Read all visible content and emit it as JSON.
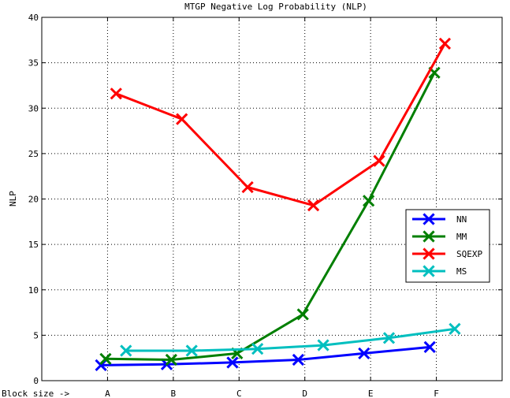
{
  "chart_data": {
    "type": "line",
    "title": "MTGP Negative Log Probability (NLP)",
    "xlabel": "Block size ->",
    "ylabel": "NLP",
    "categories": [
      "A",
      "B",
      "C",
      "D",
      "E",
      "F"
    ],
    "ylim": [
      0,
      40
    ],
    "yticks": [
      0,
      5,
      10,
      15,
      20,
      25,
      30,
      35,
      40
    ],
    "grid": true,
    "legend_position": "right",
    "series": [
      {
        "name": "NN",
        "color": "#0000ff",
        "points": [
          [
            0.9,
            1.7
          ],
          [
            1.9,
            1.8
          ],
          [
            2.9,
            2.0
          ],
          [
            3.9,
            2.3
          ],
          [
            4.9,
            3.0
          ],
          [
            5.9,
            3.7
          ]
        ]
      },
      {
        "name": "MM",
        "color": "#007f00",
        "points": [
          [
            0.97,
            2.4
          ],
          [
            1.97,
            2.3
          ],
          [
            2.97,
            3.0
          ],
          [
            3.97,
            7.3
          ],
          [
            4.97,
            19.8
          ],
          [
            5.97,
            33.9
          ]
        ]
      },
      {
        "name": "SQEXP",
        "color": "#ff0000",
        "points": [
          [
            1.13,
            31.6
          ],
          [
            2.13,
            28.8
          ],
          [
            3.13,
            21.3
          ],
          [
            4.13,
            19.3
          ],
          [
            5.13,
            24.2
          ],
          [
            6.13,
            37.1
          ]
        ]
      },
      {
        "name": "MS",
        "color": "#00bfbf",
        "points": [
          [
            1.28,
            3.3
          ],
          [
            2.28,
            3.3
          ],
          [
            3.28,
            3.5
          ],
          [
            4.28,
            3.9
          ],
          [
            5.28,
            4.7
          ],
          [
            6.28,
            5.7
          ]
        ]
      }
    ]
  }
}
